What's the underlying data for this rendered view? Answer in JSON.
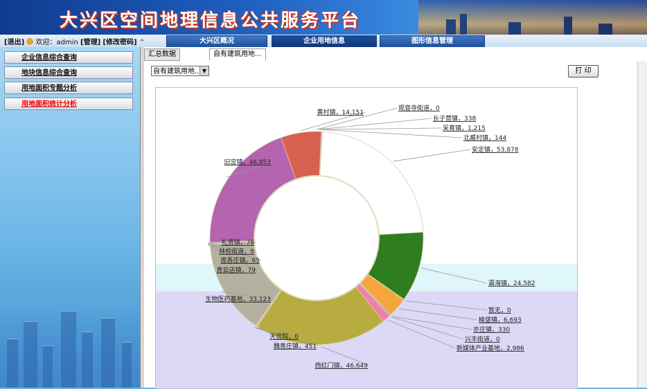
{
  "banner": {
    "title": "大兴区空间地理信息公共服务平台"
  },
  "userbar": {
    "logout": "[退出]",
    "welcome": "欢迎：admin",
    "role": "[管理]",
    "change_pwd": "[修改密码]"
  },
  "main_tabs": [
    "大兴区概况",
    "企业用地信息",
    "图形信息管理"
  ],
  "active_main_tab": 1,
  "sidebar": {
    "items": [
      {
        "label": "企业信息综合查询"
      },
      {
        "label": "地块信息综合查询"
      },
      {
        "label": "用地面积专题分析"
      },
      {
        "label": "用地面积统计分析"
      }
    ]
  },
  "content_tabs": [
    "汇总数据",
    "自有建筑用地..."
  ],
  "active_content_tab": 1,
  "filter": {
    "selected": "自有建筑用地..."
  },
  "toolbar": {
    "print": "打 印"
  },
  "colors": {
    "accent": "#1e4f9a",
    "highlight_text": "#e00000"
  },
  "chart_data": {
    "type": "pie",
    "style": "donut",
    "slices": [
      {
        "label": "观音寺街道",
        "value": 0,
        "color": "#c8a400",
        "display": "观音寺街道，0"
      },
      {
        "label": "长子营镇",
        "value": 338,
        "color": "#7fb2d6",
        "display": "长子营镇，338"
      },
      {
        "label": "采育镇",
        "value": 1215,
        "color": "#d6d6aa",
        "display": "采育镇，1,215"
      },
      {
        "label": "北臧村镇",
        "value": 144,
        "color": "#a8c8e0",
        "display": "北臧村镇，144"
      },
      {
        "label": "安定镇",
        "value": 53878,
        "color": "#ffffff",
        "display": "安定镇，53,878"
      },
      {
        "label": "瀛海镇",
        "value": 24582,
        "color": "#2e7d1e",
        "display": "瀛海镇，24,582"
      },
      {
        "label": "暂无",
        "value": 0,
        "color": "#f0c060",
        "display": "暂无，0"
      },
      {
        "label": "榆垡镇",
        "value": 6693,
        "color": "#f5a63a",
        "display": "榆垡镇，6,693"
      },
      {
        "label": "亦庄镇",
        "value": 330,
        "color": "#4a78c8",
        "display": "亦庄镇，330"
      },
      {
        "label": "兴丰街道",
        "value": 0,
        "color": "#8ab8e0",
        "display": "兴丰街道，0"
      },
      {
        "label": "新媒体产业基地",
        "value": 2986,
        "color": "#f080a8",
        "display": "新媒体产业基地，2,986"
      },
      {
        "label": "西红门镇",
        "value": 46649,
        "color": "#b8ac40",
        "display": "西红门镇，46,649"
      },
      {
        "label": "魏善庄镇",
        "value": 451,
        "color": "#d0c080",
        "display": "魏善庄镇，451"
      },
      {
        "label": "天宫院",
        "value": 0,
        "color": "#b0b0b0",
        "display": "天宫院，0"
      },
      {
        "label": "生物医药基地",
        "value": 33123,
        "color": "#b5b0a0",
        "display": "生物医药基地，33,123"
      },
      {
        "label": "青云店镇",
        "value": 79,
        "color": "#9090d0",
        "display": "青云店镇，79"
      },
      {
        "label": "庞各庄镇",
        "value": 65,
        "color": "#c8a0d8",
        "display": "庞各庄镇，65"
      },
      {
        "label": "林校街道",
        "value": 0,
        "color": "#a0a0e0",
        "display": "林校街道，0"
      },
      {
        "label": "礼贤镇",
        "value": 78,
        "color": "#d0b0e0",
        "display": "礼贤镇，78"
      },
      {
        "label": "旧宫镇",
        "value": 46853,
        "color": "#b564b0",
        "display": "旧宫镇，46,853"
      },
      {
        "label": "黄村镇",
        "value": 14151,
        "color": "#d8604e",
        "display": "黄村镇，14,151"
      }
    ]
  }
}
